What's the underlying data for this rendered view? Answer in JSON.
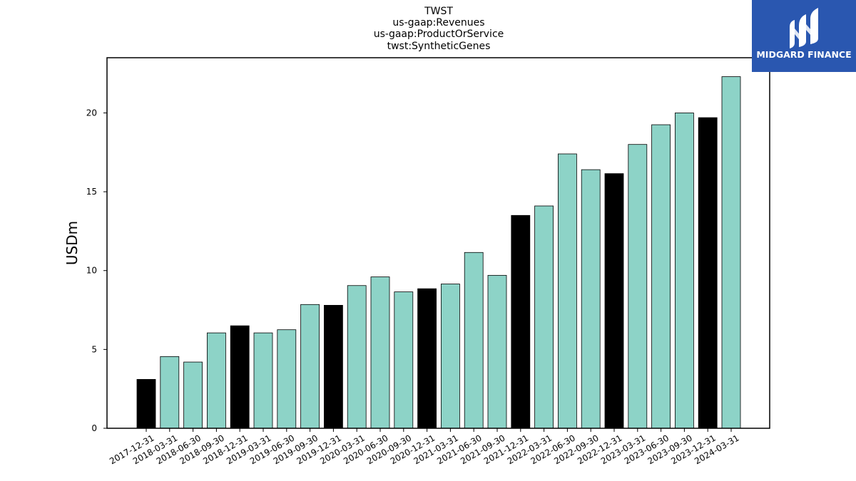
{
  "chart_data": {
    "type": "bar",
    "title_lines": [
      "TWST",
      "us-gaap:Revenues",
      "us-gaap:ProductOrService",
      "twst:SyntheticGenes"
    ],
    "xlabel": "",
    "ylabel": "USDm",
    "ylim": [
      0,
      23.5
    ],
    "yticks": [
      0,
      5,
      10,
      15,
      20
    ],
    "categories": [
      "2017-12-31",
      "2018-03-31",
      "2018-06-30",
      "2018-09-30",
      "2018-12-31",
      "2019-03-31",
      "2019-06-30",
      "2019-09-30",
      "2019-12-31",
      "2020-03-31",
      "2020-06-30",
      "2020-09-30",
      "2020-12-31",
      "2021-03-31",
      "2021-06-30",
      "2021-09-30",
      "2021-12-31",
      "2022-03-31",
      "2022-06-30",
      "2022-09-30",
      "2022-12-31",
      "2023-03-31",
      "2023-06-30",
      "2023-09-30",
      "2023-12-31",
      "2024-03-31"
    ],
    "values": [
      3.1,
      4.55,
      4.2,
      6.05,
      6.5,
      6.05,
      6.25,
      7.85,
      7.8,
      9.05,
      9.6,
      8.65,
      8.85,
      9.15,
      11.15,
      9.7,
      13.5,
      14.1,
      17.4,
      16.4,
      16.15,
      18.0,
      19.25,
      20.0,
      19.7,
      22.3
    ],
    "highlight": [
      true,
      false,
      false,
      false,
      true,
      false,
      false,
      false,
      true,
      false,
      false,
      false,
      true,
      false,
      false,
      false,
      true,
      false,
      false,
      false,
      true,
      false,
      false,
      false,
      true,
      false
    ],
    "colors": {
      "bar": "#8dd3c7",
      "highlight": "#000000",
      "edge": "#000000"
    },
    "grid": false,
    "legend": "none"
  },
  "logo": {
    "text": "MIDGARD FINANCE",
    "background": "#2a57b0",
    "icon": "midgard-m-logo-icon"
  }
}
